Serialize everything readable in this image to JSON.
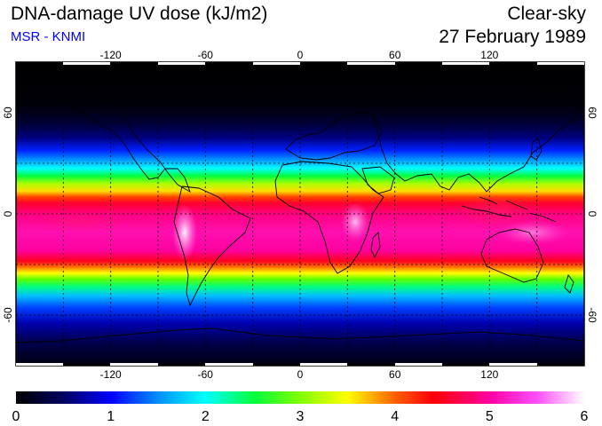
{
  "header": {
    "title": "DNA-damage UV dose (kJ/m2)",
    "source": "MSR - KNMI",
    "condition": "Clear-sky",
    "date": "27 February 1989"
  },
  "colors": {
    "source_text": "#0000ff",
    "map_frame": "#000000",
    "coastline": "#000000",
    "gridline": "#000000"
  },
  "map": {
    "projection": "equirectangular",
    "lon_range": [
      -180,
      180
    ],
    "lat_range": [
      -90,
      90
    ],
    "lon_ticks": [
      {
        "value": -120,
        "label": "-120"
      },
      {
        "value": -60,
        "label": "-60"
      },
      {
        "value": 0,
        "label": "0"
      },
      {
        "value": 60,
        "label": "60"
      },
      {
        "value": 120,
        "label": "120"
      }
    ],
    "lat_ticks": [
      {
        "value": 60,
        "label": "60"
      },
      {
        "value": 0,
        "label": "0"
      },
      {
        "value": -60,
        "label": "-60"
      }
    ],
    "gridlines": "dotted, every 30 degrees",
    "peak_band": "tropics / southern subtropics (late-summer sun)"
  },
  "colorbar": {
    "min": 0,
    "max": 6,
    "labels": [
      "0",
      "1",
      "2",
      "3",
      "4",
      "5",
      "6"
    ],
    "stops": [
      {
        "value": 0.0,
        "color": "#000000"
      },
      {
        "value": 0.5,
        "color": "#000060"
      },
      {
        "value": 1.0,
        "color": "#0000ff"
      },
      {
        "value": 1.5,
        "color": "#0090ff"
      },
      {
        "value": 2.0,
        "color": "#00ffff"
      },
      {
        "value": 2.5,
        "color": "#00ff40"
      },
      {
        "value": 3.0,
        "color": "#80ff00"
      },
      {
        "value": 3.5,
        "color": "#ffff00"
      },
      {
        "value": 4.0,
        "color": "#ff6000"
      },
      {
        "value": 4.4,
        "color": "#ff0000"
      },
      {
        "value": 5.0,
        "color": "#ff00a0"
      },
      {
        "value": 5.5,
        "color": "#ff50ff"
      },
      {
        "value": 6.0,
        "color": "#ffffff"
      }
    ]
  }
}
